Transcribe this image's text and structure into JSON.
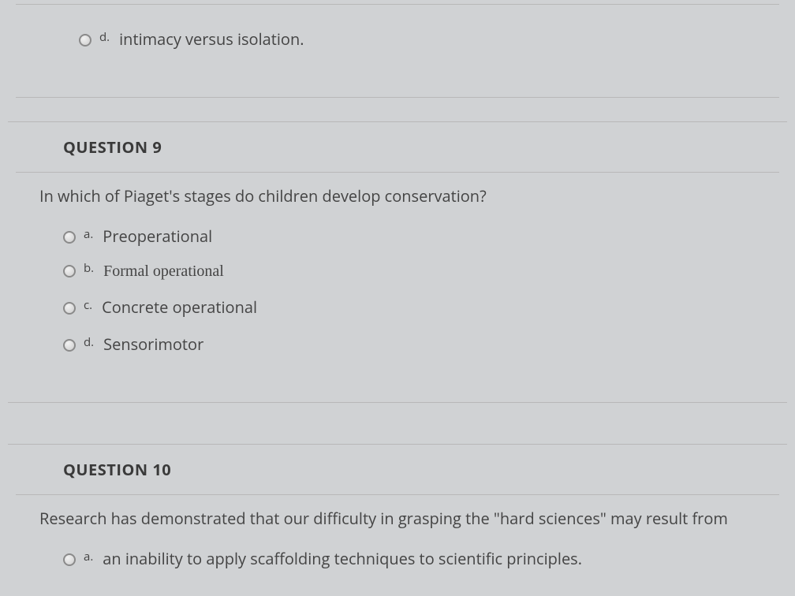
{
  "partial_prev": {
    "option_d": {
      "letter": "d.",
      "text": "intimacy versus isolation."
    }
  },
  "q9": {
    "header": "QUESTION 9",
    "prompt": "In which of Piaget's stages do children develop conservation?",
    "options": [
      {
        "letter": "a.",
        "text": "Preoperational",
        "font": "sans"
      },
      {
        "letter": "b.",
        "text": "Formal operational",
        "font": "serif"
      },
      {
        "letter": "c.",
        "text": "Concrete operational",
        "font": "sans"
      },
      {
        "letter": "d.",
        "text": "Sensorimotor",
        "font": "sans"
      }
    ]
  },
  "q10": {
    "header": "QUESTION 10",
    "prompt": "Research has demonstrated that our difficulty in grasping the \"hard sciences\" may result from",
    "options": [
      {
        "letter": "a.",
        "text": "an inability to apply scaffolding techniques to scientific principles.",
        "font": "sans"
      }
    ]
  }
}
